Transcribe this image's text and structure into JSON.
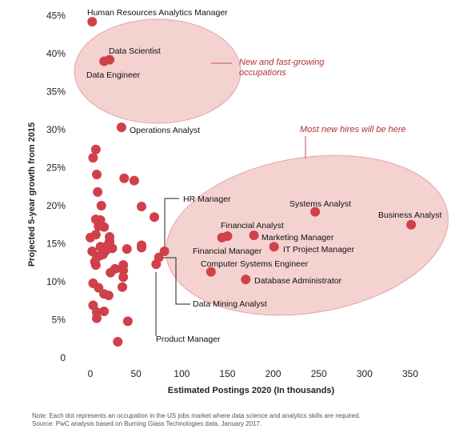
{
  "chart_data": {
    "type": "scatter",
    "xlabel": "Estimated Postings 2020 (In thousands)",
    "ylabel": "Projected 5-year growth from 2015",
    "xlim": [
      -10,
      360
    ],
    "ylim": [
      0,
      46
    ],
    "xticks": [
      "0",
      "50",
      "100",
      "150",
      "200",
      "250",
      "300",
      "350"
    ],
    "yticks": [
      "0",
      "5%",
      "10%",
      "15%",
      "20%",
      "25%",
      "30%",
      "35%",
      "40%",
      "45%"
    ],
    "grid": false,
    "point_color": "#d0404b",
    "ellipse_color": "#f4d2d0",
    "labeled_points": [
      {
        "label": "Human Resources Analytics Manager",
        "x": 2,
        "y": 44.2
      },
      {
        "label": "Data Scientist",
        "x": 21,
        "y": 39.2
      },
      {
        "label": "Data Engineer",
        "x": 15,
        "y": 39.0
      },
      {
        "label": "Operations Analyst",
        "x": 34,
        "y": 30.3
      },
      {
        "label": "HR Manager",
        "x": 81,
        "y": 14.0
      },
      {
        "label": "Systems Analyst",
        "x": 246,
        "y": 19.2
      },
      {
        "label": "Business Analyst",
        "x": 351,
        "y": 17.5
      },
      {
        "label": "Financial Analyst",
        "x": 150,
        "y": 16.0
      },
      {
        "label": "Financial Manager",
        "x": 144,
        "y": 15.8
      },
      {
        "label": "Marketing Manager",
        "x": 179,
        "y": 16.1
      },
      {
        "label": "IT Project Manager",
        "x": 201,
        "y": 14.6
      },
      {
        "label": "Computer Systems Engineer",
        "x": 132,
        "y": 11.3
      },
      {
        "label": "Database Administrator",
        "x": 170,
        "y": 10.3
      },
      {
        "label": "Data Mining Analyst",
        "x": 75,
        "y": 13.2
      },
      {
        "label": "Product Manager",
        "x": 72,
        "y": 12.3
      }
    ],
    "unlabeled_points": [
      {
        "x": 6,
        "y": 27.4
      },
      {
        "x": 3,
        "y": 26.3
      },
      {
        "x": 7,
        "y": 24.1
      },
      {
        "x": 37,
        "y": 23.6
      },
      {
        "x": 48,
        "y": 23.3
      },
      {
        "x": 8,
        "y": 21.8
      },
      {
        "x": 12,
        "y": 20.0
      },
      {
        "x": 56,
        "y": 19.9
      },
      {
        "x": 70,
        "y": 18.5
      },
      {
        "x": 6,
        "y": 18.2
      },
      {
        "x": 11,
        "y": 18.1
      },
      {
        "x": 9,
        "y": 17.3
      },
      {
        "x": 15,
        "y": 17.2
      },
      {
        "x": 21,
        "y": 15.9
      },
      {
        "x": 6,
        "y": 16.2
      },
      {
        "x": 0,
        "y": 15.8
      },
      {
        "x": 21,
        "y": 15.3
      },
      {
        "x": 19,
        "y": 14.8
      },
      {
        "x": 56,
        "y": 14.8
      },
      {
        "x": 56,
        "y": 14.5
      },
      {
        "x": 11,
        "y": 14.6
      },
      {
        "x": 2,
        "y": 14.0
      },
      {
        "x": 17,
        "y": 14.1
      },
      {
        "x": 24,
        "y": 14.4
      },
      {
        "x": 10,
        "y": 13.4
      },
      {
        "x": 14,
        "y": 13.6
      },
      {
        "x": 7,
        "y": 13.3
      },
      {
        "x": 40,
        "y": 14.3
      },
      {
        "x": 5,
        "y": 12.6
      },
      {
        "x": 6,
        "y": 12.2
      },
      {
        "x": 36,
        "y": 12.2
      },
      {
        "x": 27,
        "y": 11.7
      },
      {
        "x": 36,
        "y": 11.5
      },
      {
        "x": 22,
        "y": 11.2
      },
      {
        "x": 36,
        "y": 10.6
      },
      {
        "x": 3,
        "y": 9.8
      },
      {
        "x": 9,
        "y": 9.2
      },
      {
        "x": 35,
        "y": 9.3
      },
      {
        "x": 15,
        "y": 8.4
      },
      {
        "x": 20,
        "y": 8.2
      },
      {
        "x": 3,
        "y": 6.9
      },
      {
        "x": 15,
        "y": 6.1
      },
      {
        "x": 7,
        "y": 6.0
      },
      {
        "x": 7,
        "y": 5.2
      },
      {
        "x": 41,
        "y": 4.8
      },
      {
        "x": 30,
        "y": 2.1
      }
    ],
    "annotations": [
      {
        "text_lines": [
          "New and fast-growing",
          "occupations"
        ]
      },
      {
        "text_lines": [
          "Most new hires will be here"
        ]
      }
    ]
  },
  "footnote": {
    "line1": "Note: Each dot represents an occupation in the US jobs market where data science and analytics skills are required.",
    "line2": "Source: PwC analysis based on Burning Glass Technologies data, January 2017."
  }
}
